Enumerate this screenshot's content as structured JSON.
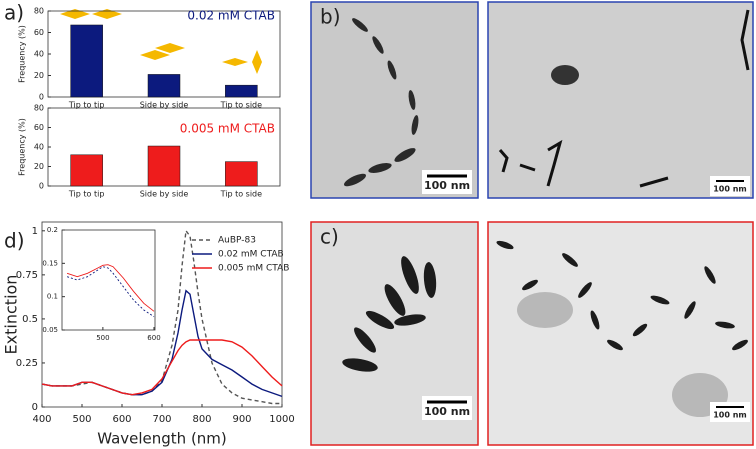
{
  "panels": [
    "a)",
    "b)",
    "c)",
    "d)"
  ],
  "images": [
    {
      "scale_bar": "100 nm"
    },
    {
      "scale_bar": "100 nm"
    },
    {
      "scale_bar": "100 nm"
    },
    {
      "scale_bar": "100 nm"
    }
  ],
  "chart_data": [
    {
      "type": "bar",
      "annotation": "0.02 mM CTAB",
      "ylabel": "Frequency (%)",
      "categories": [
        "Tip to tip",
        "Side by side",
        "Tip to side"
      ],
      "values": [
        67,
        21,
        11
      ],
      "color": "#0c1a7e",
      "ylim": [
        0,
        80
      ],
      "yticks": [
        0,
        20,
        40,
        60,
        80
      ],
      "grid": false
    },
    {
      "type": "bar",
      "annotation": "0.005 mM CTAB",
      "ylabel": "Frequency (%)",
      "categories": [
        "Tip to tip",
        "Side by side",
        "Tip to side"
      ],
      "values": [
        32,
        41,
        25
      ],
      "color": "#ee1c1c",
      "ylim": [
        0,
        80
      ],
      "yticks": [
        0,
        20,
        40,
        60,
        80
      ],
      "grid": false
    },
    {
      "type": "line",
      "xlabel": "Wavelength (nm)",
      "ylabel": "Extinction",
      "legend": "upper right",
      "grid": false,
      "x": [
        400,
        425,
        450,
        475,
        500,
        525,
        550,
        575,
        600,
        625,
        650,
        675,
        700,
        725,
        740,
        750,
        760,
        770,
        780,
        790,
        800,
        825,
        850,
        875,
        900,
        925,
        950,
        975,
        1000
      ],
      "xlim": [
        400,
        1000
      ],
      "xticks": [
        400,
        500,
        600,
        700,
        800,
        900,
        1000
      ],
      "ylim": [
        0,
        1.05
      ],
      "yticks": [
        0,
        0.25,
        0.5,
        0.75,
        1
      ],
      "series": [
        {
          "name": "AuBP-83",
          "color": "#555555",
          "dashed": true,
          "values": [
            0.13,
            0.12,
            0.12,
            0.12,
            0.13,
            0.14,
            0.12,
            0.1,
            0.08,
            0.07,
            0.07,
            0.09,
            0.15,
            0.35,
            0.55,
            0.8,
            1.0,
            0.97,
            0.82,
            0.65,
            0.5,
            0.25,
            0.13,
            0.08,
            0.05,
            0.04,
            0.03,
            0.02,
            0.02
          ]
        },
        {
          "name": "0.02 mM CTAB",
          "color": "#0c1a7e",
          "dashed": false,
          "values": [
            0.13,
            0.12,
            0.12,
            0.12,
            0.14,
            0.14,
            0.12,
            0.1,
            0.08,
            0.07,
            0.07,
            0.09,
            0.14,
            0.27,
            0.42,
            0.55,
            0.66,
            0.64,
            0.52,
            0.4,
            0.33,
            0.27,
            0.24,
            0.21,
            0.17,
            0.13,
            0.1,
            0.08,
            0.06
          ]
        },
        {
          "name": "0.005 mM CTAB",
          "color": "#ee1c1c",
          "dashed": false,
          "values": [
            0.13,
            0.12,
            0.12,
            0.12,
            0.14,
            0.14,
            0.12,
            0.1,
            0.08,
            0.07,
            0.08,
            0.1,
            0.16,
            0.26,
            0.32,
            0.35,
            0.37,
            0.38,
            0.38,
            0.38,
            0.38,
            0.38,
            0.38,
            0.37,
            0.34,
            0.29,
            0.23,
            0.17,
            0.12
          ]
        }
      ]
    },
    {
      "type": "line",
      "grid": false,
      "x": [
        430,
        450,
        470,
        490,
        500,
        510,
        520,
        540,
        560,
        580,
        600
      ],
      "xlim": [
        420,
        602
      ],
      "xticks": [
        500,
        600
      ],
      "ylim": [
        0.05,
        0.2
      ],
      "yticks": [
        0.05,
        0.1,
        0.15,
        0.2
      ],
      "series": [
        {
          "color": "#0c1a7e",
          "dashed": true,
          "values": [
            0.13,
            0.125,
            0.13,
            0.14,
            0.145,
            0.143,
            0.135,
            0.115,
            0.095,
            0.08,
            0.07
          ]
        },
        {
          "color": "#ee1c1c",
          "dashed": false,
          "values": [
            0.135,
            0.13,
            0.135,
            0.143,
            0.147,
            0.148,
            0.145,
            0.128,
            0.108,
            0.09,
            0.078
          ]
        }
      ]
    }
  ]
}
